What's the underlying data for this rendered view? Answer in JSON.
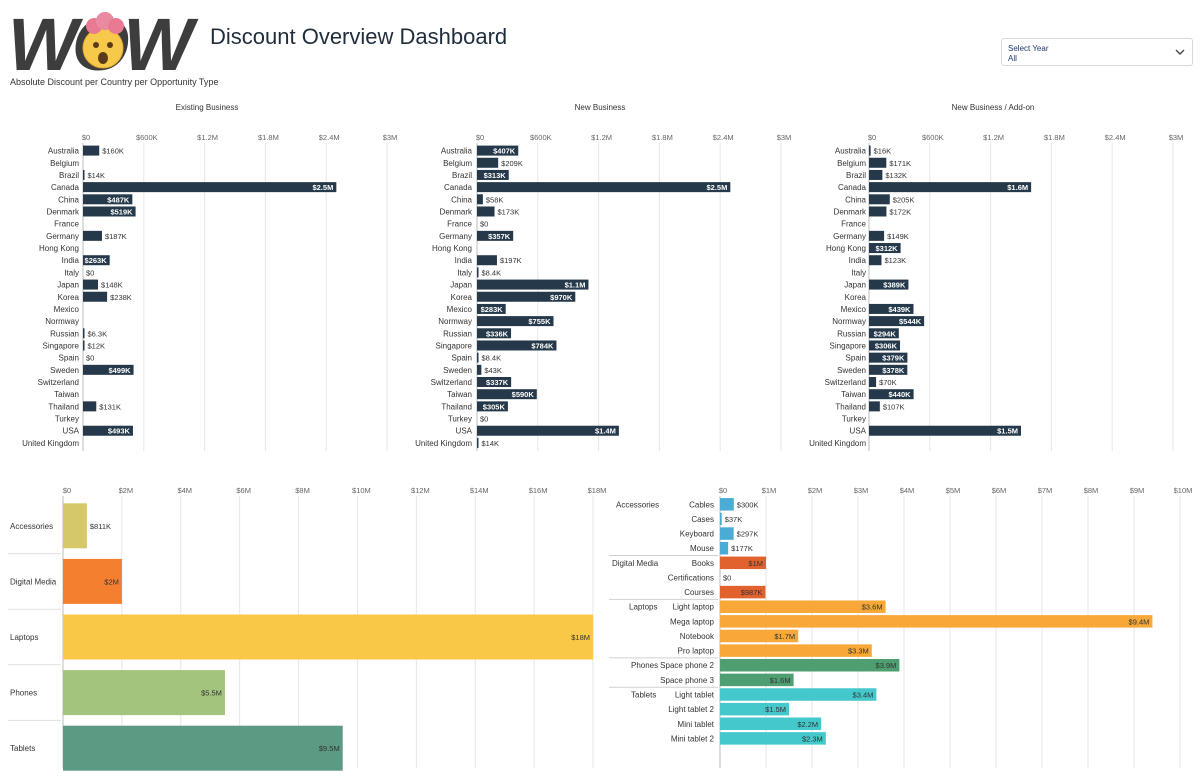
{
  "header": {
    "logo_text": "WOW",
    "title": "Discount Overview Dashboard",
    "subtitle": "Absolute Discount per Country per Opportunity Type"
  },
  "filter": {
    "label": "Select Year",
    "value": "All"
  },
  "colors": {
    "country_bar": "#25394a",
    "Accessories": "#d4c869",
    "Digital Media": "#f47f2f",
    "Laptops": "#fac847",
    "Phones": "#a3c47c",
    "Tablets": "#5d9a84",
    "sub_Accessories": "#4aabd5",
    "sub_Digital Media": "#e2622e",
    "sub_Laptops": "#f7a838",
    "sub_Phones": "#4f9e71",
    "sub_Tablets": "#45c8cc"
  },
  "chart_data": [
    {
      "type": "bar",
      "orientation": "horizontal",
      "title": "Existing Business",
      "xlim": [
        0,
        3000000
      ],
      "ticks": [
        0,
        600000,
        1200000,
        1800000,
        2400000,
        3000000
      ],
      "tick_labels": [
        "$0",
        "$600K",
        "$1.2M",
        "$1.8M",
        "$2.4M",
        "$3M"
      ],
      "categories": [
        "Australia",
        "Belgium",
        "Brazil",
        "Canada",
        "China",
        "Denmark",
        "France",
        "Germany",
        "Hong Kong",
        "India",
        "Italy",
        "Japan",
        "Korea",
        "Mexico",
        "Normway",
        "Russian",
        "Singapore",
        "Spain",
        "Sweden",
        "Switzerland",
        "Taiwan",
        "Thailand",
        "Turkey",
        "USA",
        "United Kingdom"
      ],
      "values": [
        160000,
        null,
        14000,
        2500000,
        487000,
        519000,
        null,
        187000,
        null,
        263000,
        0,
        148000,
        238000,
        null,
        null,
        6300,
        12000,
        0,
        499000,
        null,
        null,
        131000,
        null,
        493000,
        null
      ],
      "labels": [
        "$160K",
        "",
        "$14K",
        "$2.5M",
        "$487K",
        "$519K",
        "",
        "$187K",
        "",
        "$263K",
        "$0",
        "$148K",
        "$238K",
        "",
        "",
        "$6.3K",
        "$12K",
        "$0",
        "$499K",
        "",
        "",
        "$131K",
        "",
        "$493K",
        ""
      ]
    },
    {
      "type": "bar",
      "orientation": "horizontal",
      "title": "New Business",
      "xlim": [
        0,
        3000000
      ],
      "ticks": [
        0,
        600000,
        1200000,
        1800000,
        2400000,
        3000000
      ],
      "tick_labels": [
        "$0",
        "$600K",
        "$1.2M",
        "$1.8M",
        "$2.4M",
        "$3M"
      ],
      "categories": [
        "Australia",
        "Belgium",
        "Brazil",
        "Canada",
        "China",
        "Denmark",
        "France",
        "Germany",
        "Hong Kong",
        "India",
        "Italy",
        "Japan",
        "Korea",
        "Mexico",
        "Normway",
        "Russian",
        "Singapore",
        "Spain",
        "Sweden",
        "Switzerland",
        "Taiwan",
        "Thailand",
        "Turkey",
        "USA",
        "United Kingdom"
      ],
      "values": [
        407000,
        209000,
        313000,
        2500000,
        58000,
        173000,
        0,
        357000,
        null,
        197000,
        8400,
        1100000,
        970000,
        283000,
        755000,
        336000,
        784000,
        8400,
        43000,
        337000,
        590000,
        305000,
        0,
        1400000,
        14000
      ],
      "labels": [
        "$407K",
        "$209K",
        "$313K",
        "$2.5M",
        "$58K",
        "$173K",
        "$0",
        "$357K",
        "",
        "$197K",
        "$8.4K",
        "$1.1M",
        "$970K",
        "$283K",
        "$755K",
        "$336K",
        "$784K",
        "$8.4K",
        "$43K",
        "$337K",
        "$590K",
        "$305K",
        "$0",
        "$1.4M",
        "$14K"
      ]
    },
    {
      "type": "bar",
      "orientation": "horizontal",
      "title": "New Business / Add-on",
      "xlim": [
        0,
        3000000
      ],
      "ticks": [
        0,
        600000,
        1200000,
        1800000,
        2400000,
        3000000
      ],
      "tick_labels": [
        "$0",
        "$600K",
        "$1.2M",
        "$1.8M",
        "$2.4M",
        "$3M"
      ],
      "categories": [
        "Australia",
        "Belgium",
        "Brazil",
        "Canada",
        "China",
        "Denmark",
        "France",
        "Germany",
        "Hong Kong",
        "India",
        "Italy",
        "Japan",
        "Korea",
        "Mexico",
        "Normway",
        "Russian",
        "Singapore",
        "Spain",
        "Sweden",
        "Switzerland",
        "Taiwan",
        "Thailand",
        "Turkey",
        "USA",
        "United Kingdom"
      ],
      "values": [
        16000,
        171000,
        132000,
        1600000,
        205000,
        172000,
        null,
        149000,
        312000,
        123000,
        null,
        389000,
        null,
        439000,
        544000,
        294000,
        306000,
        379000,
        378000,
        70000,
        440000,
        107000,
        null,
        1500000,
        null
      ],
      "labels": [
        "$16K",
        "$171K",
        "$132K",
        "$1.6M",
        "$205K",
        "$172K",
        "",
        "$149K",
        "$312K",
        "$123K",
        "",
        "$389K",
        "",
        "$439K",
        "$544K",
        "$294K",
        "$306K",
        "$379K",
        "$378K",
        "$70K",
        "$440K",
        "$107K",
        "",
        "$1.5M",
        ""
      ]
    },
    {
      "type": "bar",
      "orientation": "horizontal",
      "title": "",
      "xlim": [
        0,
        18000000
      ],
      "ticks": [
        0,
        2000000,
        4000000,
        6000000,
        8000000,
        10000000,
        12000000,
        14000000,
        16000000,
        18000000
      ],
      "tick_labels": [
        "$0",
        "$2M",
        "$4M",
        "$6M",
        "$8M",
        "$10M",
        "$12M",
        "$14M",
        "$16M",
        "$18M"
      ],
      "categories": [
        "Accessories",
        "Digital Media",
        "Laptops",
        "Phones",
        "Tablets"
      ],
      "values": [
        811000,
        2000000,
        18000000,
        5500000,
        9500000
      ],
      "labels": [
        "$811K",
        "$2M",
        "$18M",
        "$5.5M",
        "$9.5M"
      ]
    },
    {
      "type": "bar",
      "orientation": "horizontal",
      "title": "",
      "xlim": [
        0,
        10000000
      ],
      "ticks": [
        0,
        1000000,
        2000000,
        3000000,
        4000000,
        5000000,
        6000000,
        7000000,
        8000000,
        9000000,
        10000000
      ],
      "tick_labels": [
        "$0",
        "$1M",
        "$2M",
        "$3M",
        "$4M",
        "$5M",
        "$6M",
        "$7M",
        "$8M",
        "$9M",
        "$10M"
      ],
      "groups": [
        {
          "name": "Accessories",
          "rows": [
            {
              "name": "Cables",
              "value": 300000,
              "label": "$300K"
            },
            {
              "name": "Cases",
              "value": 37000,
              "label": "$37K"
            },
            {
              "name": "Keyboard",
              "value": 297000,
              "label": "$297K"
            },
            {
              "name": "Mouse",
              "value": 177000,
              "label": "$177K"
            }
          ]
        },
        {
          "name": "Digital Media",
          "rows": [
            {
              "name": "Books",
              "value": 1000000,
              "label": "$1M"
            },
            {
              "name": "Certifications",
              "value": 0,
              "label": "$0"
            },
            {
              "name": "Courses",
              "value": 987000,
              "label": "$987K"
            }
          ]
        },
        {
          "name": "Laptops",
          "rows": [
            {
              "name": "Light laptop",
              "value": 3600000,
              "label": "$3.6M"
            },
            {
              "name": "Mega laptop",
              "value": 9400000,
              "label": "$9.4M"
            },
            {
              "name": "Notebook",
              "value": 1700000,
              "label": "$1.7M"
            },
            {
              "name": "Pro laptop",
              "value": 3300000,
              "label": "$3.3M"
            }
          ]
        },
        {
          "name": "Phones",
          "rows": [
            {
              "name": "Space phone 2",
              "value": 3900000,
              "label": "$3.9M"
            },
            {
              "name": "Space phone 3",
              "value": 1600000,
              "label": "$1.6M"
            }
          ]
        },
        {
          "name": "Tablets",
          "rows": [
            {
              "name": "Light tablet",
              "value": 3400000,
              "label": "$3.4M"
            },
            {
              "name": "Light tablet 2",
              "value": 1500000,
              "label": "$1.5M"
            },
            {
              "name": "Mini tablet",
              "value": 2200000,
              "label": "$2.2M"
            },
            {
              "name": "Mini tablet 2",
              "value": 2300000,
              "label": "$2.3M"
            }
          ]
        }
      ]
    }
  ]
}
